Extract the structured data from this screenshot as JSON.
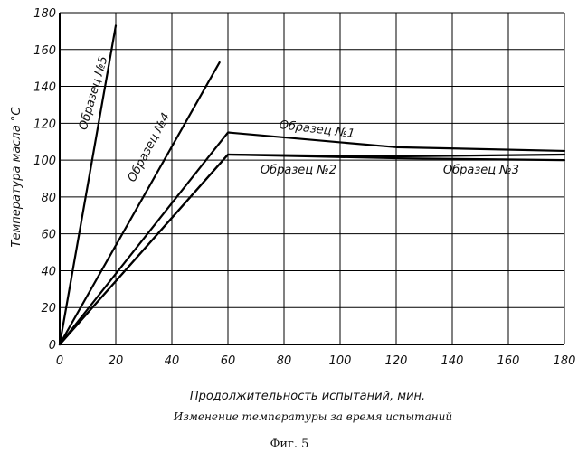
{
  "chart_data": {
    "type": "line",
    "xlabel": "Продолжительность испытаний, мин.",
    "ylabel": "Температура масла °С",
    "caption": "Изменение температуры за время испытаний",
    "figure_label": "Фиг. 5",
    "xlim": [
      0,
      180
    ],
    "ylim": [
      0,
      180
    ],
    "x_ticks": [
      0,
      20,
      40,
      60,
      80,
      100,
      120,
      140,
      160,
      180
    ],
    "y_ticks": [
      0,
      20,
      40,
      60,
      80,
      100,
      120,
      140,
      160,
      180
    ],
    "grid": true,
    "series": [
      {
        "name": "Образец №1",
        "x": [
          0,
          60,
          120,
          180
        ],
        "y": [
          0,
          115,
          107,
          105
        ]
      },
      {
        "name": "Образец №2",
        "x": [
          0,
          60,
          120,
          180
        ],
        "y": [
          0,
          103,
          102,
          103
        ]
      },
      {
        "name": "Образец №3",
        "x": [
          0,
          60,
          120,
          180
        ],
        "y": [
          0,
          103,
          101,
          100
        ]
      },
      {
        "name": "Образец №4",
        "x": [
          0,
          57
        ],
        "y": [
          0,
          153
        ]
      },
      {
        "name": "Образец №5",
        "x": [
          0,
          20
        ],
        "y": [
          0,
          173
        ]
      }
    ]
  }
}
